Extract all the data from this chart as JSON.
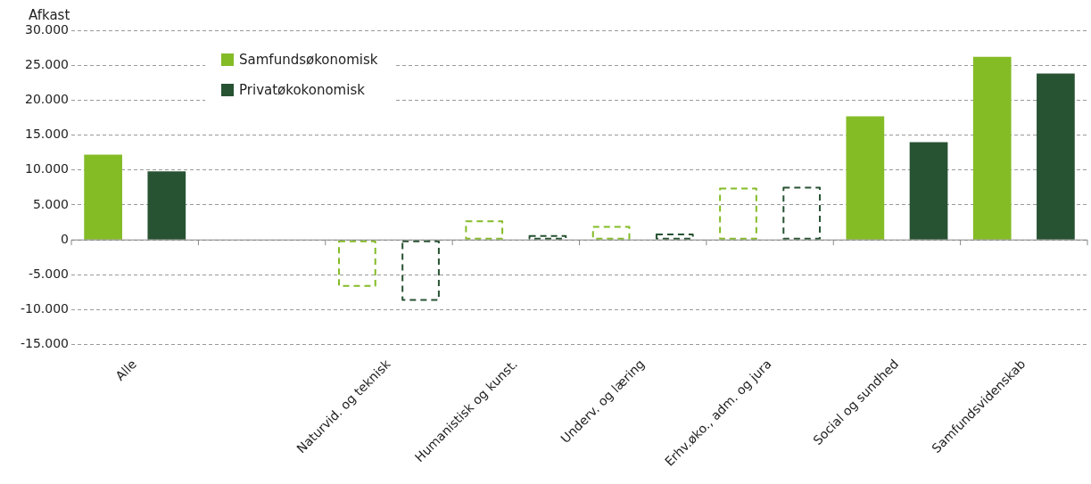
{
  "chart_data": {
    "type": "bar",
    "ylabel": "Afkast",
    "categories": [
      "Alle",
      null,
      "Naturvid. og teknisk",
      "Humanistisk og kunst.",
      "Underv. og læring",
      "Erhv.øko., adm. og jura",
      "Social og sundhed",
      "Samfundsvidenskab"
    ],
    "series": [
      {
        "name": "Samfundsøkonomisk",
        "color": "#84bc26",
        "values": [
          12200,
          null,
          -6700,
          2800,
          2000,
          7500,
          17700,
          26200
        ],
        "line_style": [
          "solid",
          null,
          "dashed",
          "dashed",
          "dashed",
          "dashed",
          "solid",
          "solid"
        ]
      },
      {
        "name": "Privatøkokonomisk",
        "color": "#285333",
        "values": [
          9800,
          null,
          -8700,
          700,
          900,
          7600,
          14000,
          23800
        ],
        "line_style": [
          "solid",
          null,
          "dashed",
          "dashed",
          "dashed",
          "dashed",
          "solid",
          "solid"
        ]
      }
    ],
    "ylim": [
      -15000,
      30000
    ],
    "yticks": [
      {
        "value": -15000,
        "label": "-15.000"
      },
      {
        "value": -10000,
        "label": "-10.000"
      },
      {
        "value": -5000,
        "label": "-5.000"
      },
      {
        "value": 0,
        "label": "0"
      },
      {
        "value": 5000,
        "label": "5.000"
      },
      {
        "value": 10000,
        "label": "10.000"
      },
      {
        "value": 15000,
        "label": "15.000"
      },
      {
        "value": 20000,
        "label": "20.000"
      },
      {
        "value": 25000,
        "label": "25.000"
      },
      {
        "value": 30000,
        "label": "30.000"
      }
    ],
    "grid": "y",
    "legend": "top left"
  }
}
